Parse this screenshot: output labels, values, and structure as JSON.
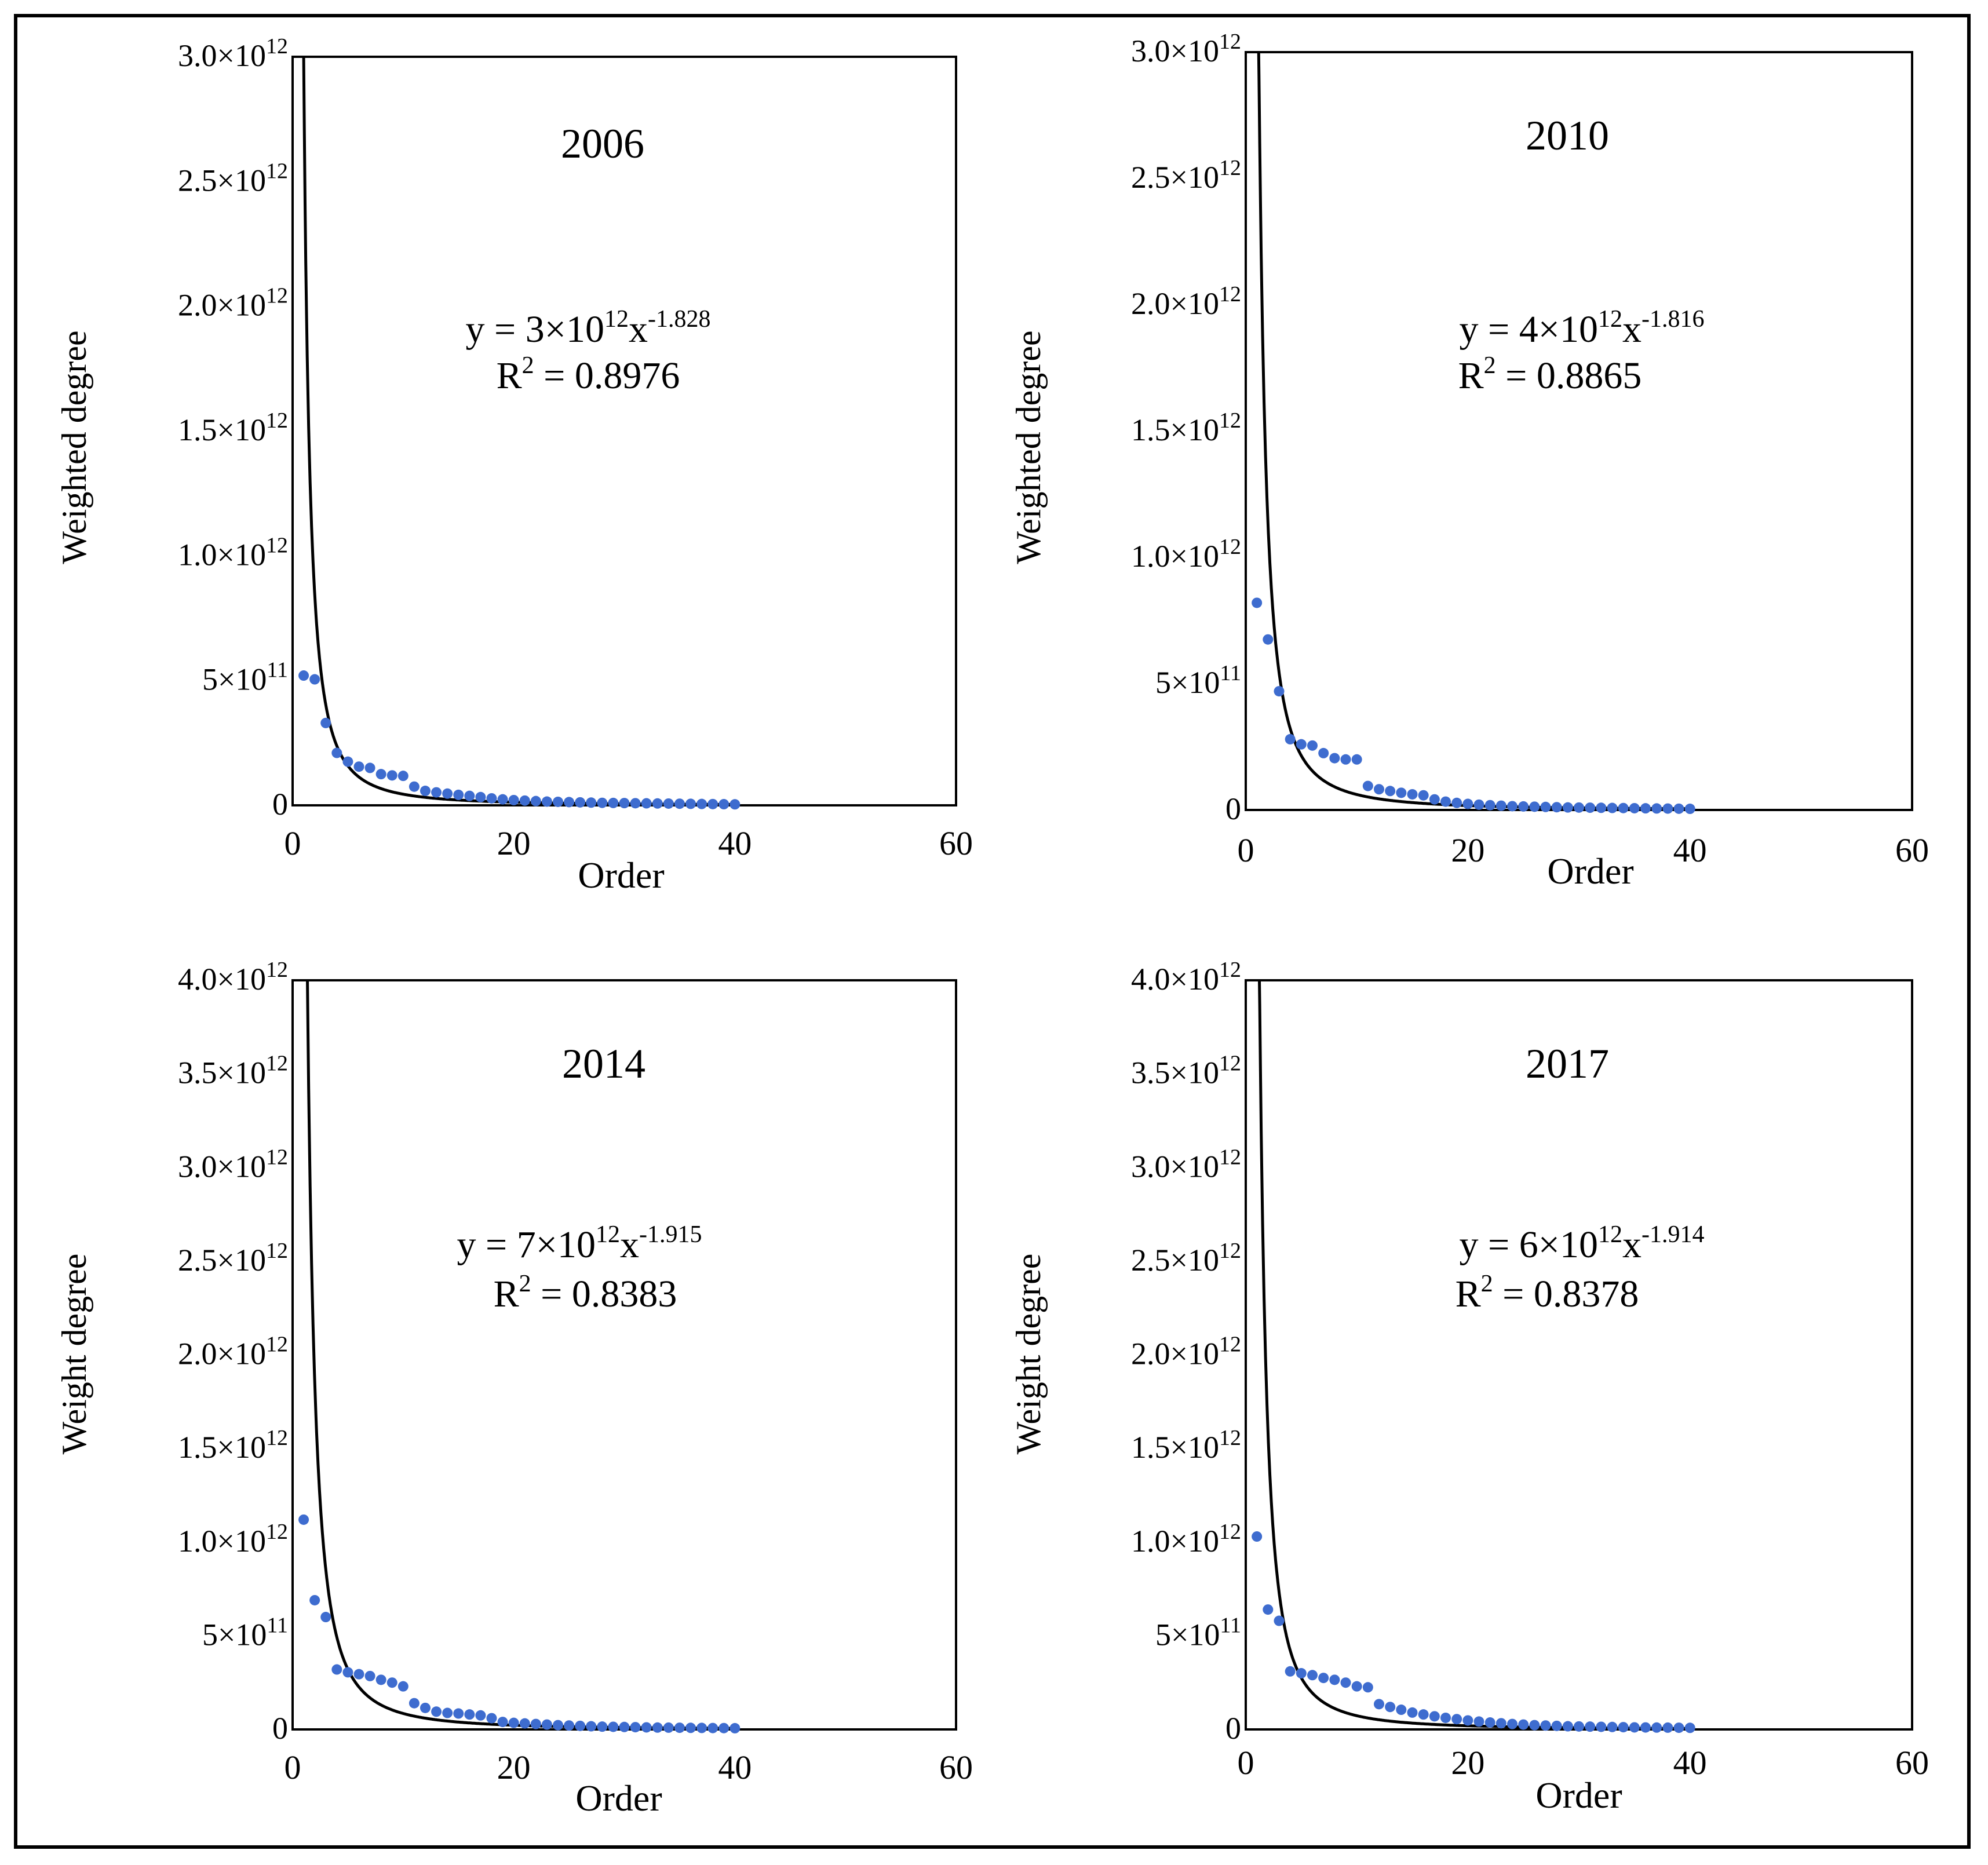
{
  "colors": {
    "points": "#3e6ccf",
    "fit_line": "#000000",
    "frame": "#000000"
  },
  "chart_data": [
    {
      "type": "scatter",
      "panel": "top-left",
      "title": "2006",
      "xlabel": "Order",
      "ylabel": "Weighted degree",
      "xlim": [
        0,
        60
      ],
      "ylim": [
        0,
        3000000000000
      ],
      "x_ticks": [
        0,
        20,
        40,
        60
      ],
      "x_tick_labels": [
        "0",
        "20",
        "40",
        "60"
      ],
      "y_ticks": [
        0,
        500000000000,
        1000000000000,
        1500000000000,
        2000000000000,
        2500000000000,
        3000000000000
      ],
      "y_tick_labels": [
        {
          "base": "0",
          "exp": ""
        },
        {
          "base": "5×10",
          "exp": "11"
        },
        {
          "base": "1.0×10",
          "exp": "12"
        },
        {
          "base": "1.5×10",
          "exp": "12"
        },
        {
          "base": "2.0×10",
          "exp": "12"
        },
        {
          "base": "2.5×10",
          "exp": "12"
        },
        {
          "base": "3.0×10",
          "exp": "12"
        }
      ],
      "equation": {
        "prefix": "y = 3×10",
        "exp1": "12",
        "mid": "x",
        "exp2": "-1.828"
      },
      "r2": {
        "prefix": "R",
        "exp": "2",
        "value": " = 0.8976"
      },
      "fit": {
        "a": 3000000000000,
        "b": -1.828
      },
      "points": [
        [
          1,
          520000000000
        ],
        [
          2,
          505000000000
        ],
        [
          3,
          330000000000
        ],
        [
          4,
          210000000000
        ],
        [
          5,
          175000000000
        ],
        [
          6,
          155000000000
        ],
        [
          7,
          150000000000
        ],
        [
          8,
          125000000000
        ],
        [
          9,
          120000000000
        ],
        [
          10,
          118000000000
        ],
        [
          11,
          75000000000
        ],
        [
          12,
          58000000000
        ],
        [
          13,
          52000000000
        ],
        [
          14,
          47000000000
        ],
        [
          15,
          42000000000
        ],
        [
          16,
          38000000000
        ],
        [
          17,
          33000000000
        ],
        [
          18,
          28000000000
        ],
        [
          19,
          24000000000
        ],
        [
          20,
          21000000000
        ],
        [
          21,
          19000000000
        ],
        [
          22,
          17000000000
        ],
        [
          23,
          15000000000
        ],
        [
          24,
          14000000000
        ],
        [
          25,
          13000000000
        ],
        [
          26,
          12000000000
        ],
        [
          27,
          11000000000
        ],
        [
          28,
          10000000000
        ],
        [
          29,
          9500000000
        ],
        [
          30,
          9000000000
        ],
        [
          31,
          8500000000
        ],
        [
          32,
          8000000000
        ],
        [
          33,
          7500000000
        ],
        [
          34,
          7000000000
        ],
        [
          35,
          6500000000
        ],
        [
          36,
          6000000000
        ],
        [
          37,
          5500000000
        ],
        [
          38,
          5000000000
        ],
        [
          39,
          4500000000
        ],
        [
          40,
          4000000000
        ]
      ]
    },
    {
      "type": "scatter",
      "panel": "top-right",
      "title": "2010",
      "xlabel": "Order",
      "ylabel": "Weighted degree",
      "xlim": [
        0,
        60
      ],
      "ylim": [
        0,
        3000000000000
      ],
      "x_ticks": [
        0,
        20,
        40,
        60
      ],
      "x_tick_labels": [
        "0",
        "20",
        "40",
        "60"
      ],
      "y_ticks": [
        0,
        500000000000,
        1000000000000,
        1500000000000,
        2000000000000,
        2500000000000,
        3000000000000
      ],
      "y_tick_labels": [
        {
          "base": "0",
          "exp": ""
        },
        {
          "base": "5×10",
          "exp": "11"
        },
        {
          "base": "1.0×10",
          "exp": "12"
        },
        {
          "base": "1.5×10",
          "exp": "12"
        },
        {
          "base": "2.0×10",
          "exp": "12"
        },
        {
          "base": "2.5×10",
          "exp": "12"
        },
        {
          "base": "3.0×10",
          "exp": "12"
        }
      ],
      "equation": {
        "prefix": "y = 4×10",
        "exp1": "12",
        "mid": "x",
        "exp2": "-1.816"
      },
      "r2": {
        "prefix": "R",
        "exp": "2",
        "value": " = 0.8865"
      },
      "fit": {
        "a": 4000000000000,
        "b": -1.816
      },
      "points": [
        [
          1,
          820000000000
        ],
        [
          2,
          675000000000
        ],
        [
          3,
          470000000000
        ],
        [
          4,
          280000000000
        ],
        [
          5,
          260000000000
        ],
        [
          6,
          255000000000
        ],
        [
          7,
          225000000000
        ],
        [
          8,
          205000000000
        ],
        [
          9,
          200000000000
        ],
        [
          10,
          200000000000
        ],
        [
          11,
          95000000000
        ],
        [
          12,
          82000000000
        ],
        [
          13,
          75000000000
        ],
        [
          14,
          68000000000
        ],
        [
          15,
          62000000000
        ],
        [
          16,
          58000000000
        ],
        [
          17,
          42000000000
        ],
        [
          18,
          33000000000
        ],
        [
          19,
          28000000000
        ],
        [
          20,
          24000000000
        ],
        [
          21,
          21000000000
        ],
        [
          22,
          19000000000
        ],
        [
          23,
          17000000000
        ],
        [
          24,
          15000000000
        ],
        [
          25,
          14000000000
        ],
        [
          26,
          13000000000
        ],
        [
          27,
          12000000000
        ],
        [
          28,
          11000000000
        ],
        [
          29,
          10000000000
        ],
        [
          30,
          9500000000
        ],
        [
          31,
          9000000000
        ],
        [
          32,
          8500000000
        ],
        [
          33,
          8000000000
        ],
        [
          34,
          7500000000
        ],
        [
          35,
          7000000000
        ],
        [
          36,
          6500000000
        ],
        [
          37,
          6000000000
        ],
        [
          38,
          5500000000
        ],
        [
          39,
          5000000000
        ],
        [
          40,
          4500000000
        ]
      ]
    },
    {
      "type": "scatter",
      "panel": "bottom-left",
      "title": "2014",
      "xlabel": "Order",
      "ylabel": "Weight degree",
      "xlim": [
        0,
        60
      ],
      "ylim": [
        0,
        4000000000000
      ],
      "x_ticks": [
        0,
        20,
        40,
        60
      ],
      "x_tick_labels": [
        "0",
        "20",
        "40",
        "60"
      ],
      "y_ticks": [
        0,
        500000000000,
        1000000000000,
        1500000000000,
        2000000000000,
        2500000000000,
        3000000000000,
        3500000000000,
        4000000000000
      ],
      "y_tick_labels": [
        {
          "base": "0",
          "exp": ""
        },
        {
          "base": "5×10",
          "exp": "11"
        },
        {
          "base": "1.0×10",
          "exp": "12"
        },
        {
          "base": "1.5×10",
          "exp": "12"
        },
        {
          "base": "2.0×10",
          "exp": "12"
        },
        {
          "base": "2.5×10",
          "exp": "12"
        },
        {
          "base": "3.0×10",
          "exp": "12"
        },
        {
          "base": "3.5×10",
          "exp": "12"
        },
        {
          "base": "4.0×10",
          "exp": "12"
        }
      ],
      "equation": {
        "prefix": "y = 7×10",
        "exp1": "12",
        "mid": "x",
        "exp2": "-1.915"
      },
      "r2": {
        "prefix": "R",
        "exp": "2",
        "value": " = 0.8383"
      },
      "fit": {
        "a": 7000000000000,
        "b": -1.915
      },
      "points": [
        [
          1,
          1120000000000
        ],
        [
          2,
          690000000000
        ],
        [
          3,
          600000000000
        ],
        [
          4,
          320000000000
        ],
        [
          5,
          305000000000
        ],
        [
          6,
          295000000000
        ],
        [
          7,
          285000000000
        ],
        [
          8,
          265000000000
        ],
        [
          9,
          250000000000
        ],
        [
          10,
          230000000000
        ],
        [
          11,
          140000000000
        ],
        [
          12,
          115000000000
        ],
        [
          13,
          95000000000
        ],
        [
          14,
          88000000000
        ],
        [
          15,
          85000000000
        ],
        [
          16,
          80000000000
        ],
        [
          17,
          75000000000
        ],
        [
          18,
          60000000000
        ],
        [
          19,
          40000000000
        ],
        [
          20,
          35000000000
        ],
        [
          21,
          32000000000
        ],
        [
          22,
          29000000000
        ],
        [
          23,
          26000000000
        ],
        [
          24,
          23000000000
        ],
        [
          25,
          21000000000
        ],
        [
          26,
          19000000000
        ],
        [
          27,
          17000000000
        ],
        [
          28,
          15000000000
        ],
        [
          29,
          14000000000
        ],
        [
          30,
          13000000000
        ],
        [
          31,
          12000000000
        ],
        [
          32,
          11000000000
        ],
        [
          33,
          10000000000
        ],
        [
          34,
          9500000000
        ],
        [
          35,
          9000000000
        ],
        [
          36,
          8500000000
        ],
        [
          37,
          8000000000
        ],
        [
          38,
          7500000000
        ],
        [
          39,
          7000000000
        ],
        [
          40,
          6500000000
        ]
      ]
    },
    {
      "type": "scatter",
      "panel": "bottom-right",
      "title": "2017",
      "xlabel": "Order",
      "ylabel": "Weight degree",
      "xlim": [
        0,
        60
      ],
      "ylim": [
        0,
        4000000000000
      ],
      "x_ticks": [
        0,
        20,
        40,
        60
      ],
      "x_tick_labels": [
        "0",
        "20",
        "40",
        "60"
      ],
      "y_ticks": [
        0,
        500000000000,
        1000000000000,
        1500000000000,
        2000000000000,
        2500000000000,
        3000000000000,
        3500000000000,
        4000000000000
      ],
      "y_tick_labels": [
        {
          "base": "0",
          "exp": ""
        },
        {
          "base": "5×10",
          "exp": "11"
        },
        {
          "base": "1.0×10",
          "exp": "12"
        },
        {
          "base": "1.5×10",
          "exp": "12"
        },
        {
          "base": "2.0×10",
          "exp": "12"
        },
        {
          "base": "2.5×10",
          "exp": "12"
        },
        {
          "base": "3.0×10",
          "exp": "12"
        },
        {
          "base": "3.5×10",
          "exp": "12"
        },
        {
          "base": "4.0×10",
          "exp": "12"
        }
      ],
      "equation": {
        "prefix": "y = 6×10",
        "exp1": "12",
        "mid": "x",
        "exp2": "-1.914"
      },
      "r2": {
        "prefix": "R",
        "exp": "2",
        "value": " = 0.8378"
      },
      "fit": {
        "a": 6000000000000,
        "b": -1.914
      },
      "points": [
        [
          1,
          1030000000000
        ],
        [
          2,
          640000000000
        ],
        [
          3,
          580000000000
        ],
        [
          4,
          310000000000
        ],
        [
          5,
          300000000000
        ],
        [
          6,
          290000000000
        ],
        [
          7,
          275000000000
        ],
        [
          8,
          265000000000
        ],
        [
          9,
          250000000000
        ],
        [
          10,
          230000000000
        ],
        [
          11,
          225000000000
        ],
        [
          12,
          135000000000
        ],
        [
          13,
          120000000000
        ],
        [
          14,
          105000000000
        ],
        [
          15,
          90000000000
        ],
        [
          16,
          80000000000
        ],
        [
          17,
          70000000000
        ],
        [
          18,
          62000000000
        ],
        [
          19,
          55000000000
        ],
        [
          20,
          48000000000
        ],
        [
          21,
          42000000000
        ],
        [
          22,
          37000000000
        ],
        [
          23,
          33000000000
        ],
        [
          24,
          29000000000
        ],
        [
          25,
          26000000000
        ],
        [
          26,
          23000000000
        ],
        [
          27,
          21000000000
        ],
        [
          28,
          19000000000
        ],
        [
          29,
          17000000000
        ],
        [
          30,
          16000000000
        ],
        [
          31,
          15000000000
        ],
        [
          32,
          14000000000
        ],
        [
          33,
          13000000000
        ],
        [
          34,
          12000000000
        ],
        [
          35,
          11000000000
        ],
        [
          36,
          10500000000
        ],
        [
          37,
          10000000000
        ],
        [
          38,
          9500000000
        ],
        [
          39,
          9000000000
        ],
        [
          40,
          8500000000
        ]
      ]
    }
  ]
}
